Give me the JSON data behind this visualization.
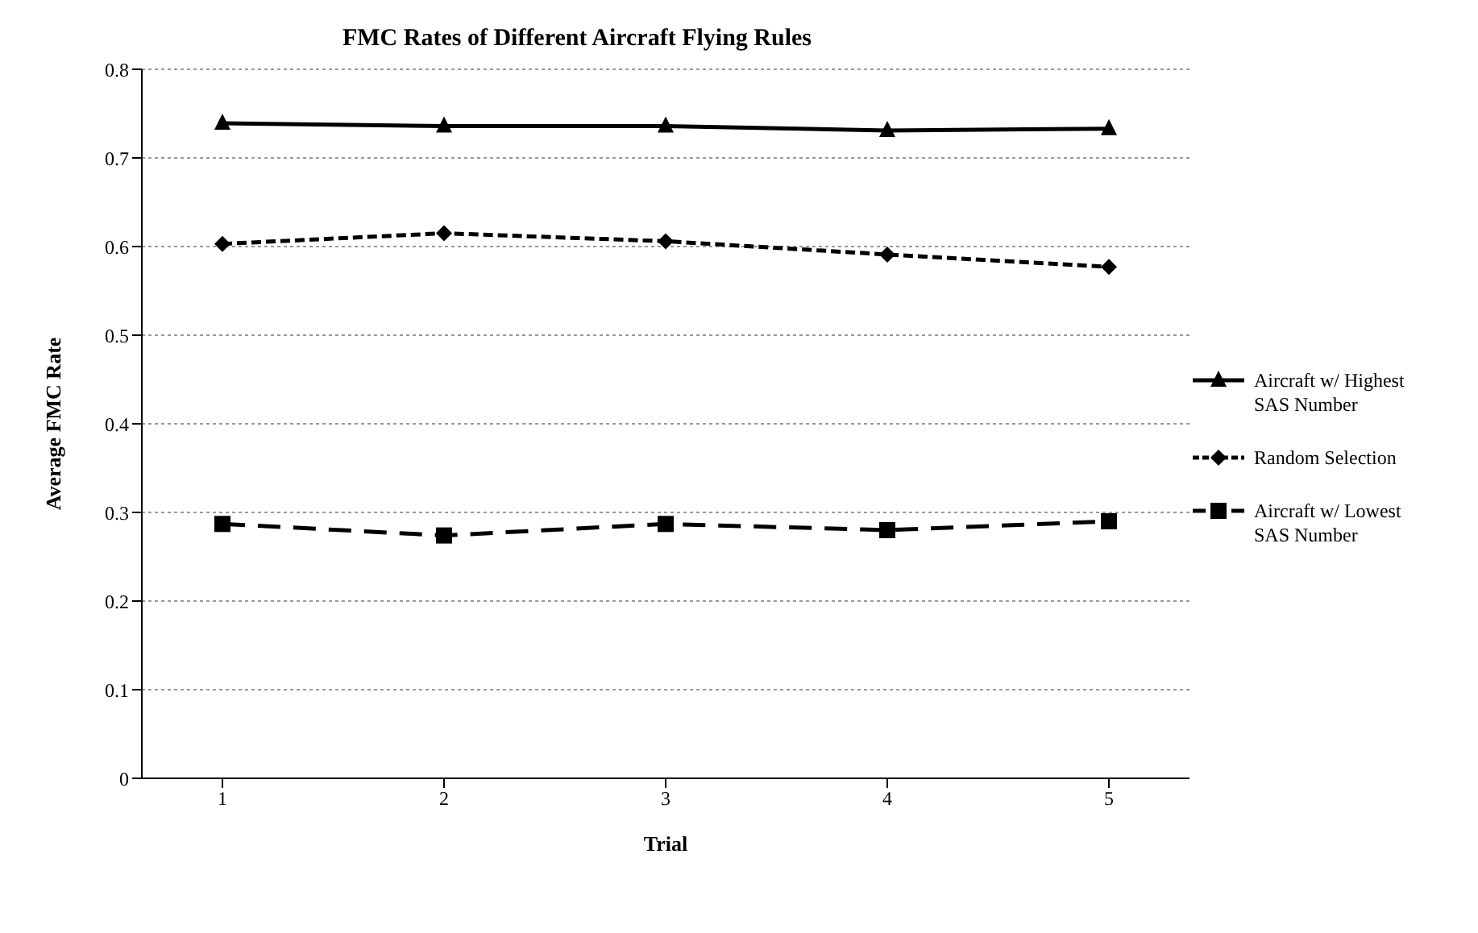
{
  "chart_data": {
    "type": "line",
    "title": "FMC Rates of Different Aircraft Flying Rules",
    "xlabel": "Trial",
    "ylabel": "Average FMC Rate",
    "categories": [
      "1",
      "2",
      "3",
      "4",
      "5"
    ],
    "series": [
      {
        "name": "Aircraft w/ Highest SAS Number",
        "color": "#000000",
        "marker": "triangle",
        "line_style": "solid",
        "values": [
          0.739,
          0.736,
          0.736,
          0.731,
          0.733
        ]
      },
      {
        "name": "Random Selection",
        "color": "#000000",
        "marker": "diamond",
        "line_style": "dotted",
        "values": [
          0.603,
          0.615,
          0.606,
          0.591,
          0.577
        ]
      },
      {
        "name": "Aircraft w/ Lowest SAS Number",
        "color": "#000000",
        "marker": "square",
        "line_style": "dashed",
        "values": [
          0.287,
          0.274,
          0.287,
          0.28,
          0.29
        ]
      }
    ],
    "ylim": [
      0,
      0.8
    ],
    "yticks": [
      0,
      0.1,
      0.2,
      0.3,
      0.4,
      0.5,
      0.6,
      0.7,
      0.8
    ],
    "grid": "y",
    "legend": "right"
  }
}
